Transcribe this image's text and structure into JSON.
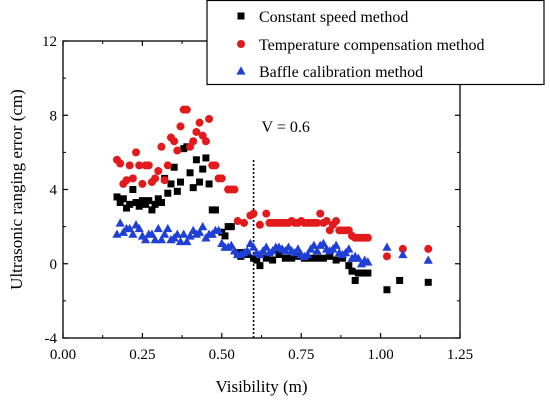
{
  "chart_data": {
    "type": "scatter",
    "xlabel": "Visibility (m)",
    "ylabel": "Ultrasonic ranging error (cm)",
    "xlim": [
      0.0,
      1.25
    ],
    "ylim": [
      -4,
      12
    ],
    "xticks": [
      "0.00",
      "0.25",
      "0.50",
      "0.75",
      "1.00",
      "1.25"
    ],
    "yticks": [
      "-4",
      "0",
      "4",
      "8",
      "12"
    ],
    "legend_position": "top-right",
    "annotation": {
      "text": "V = 0.6",
      "x": 0.6,
      "style": "dotted-vertical-line"
    },
    "series": [
      {
        "name": "Constant speed method",
        "marker": "square",
        "color": "#000000",
        "points": [
          [
            0.17,
            3.6
          ],
          [
            0.18,
            3.3
          ],
          [
            0.19,
            3.5
          ],
          [
            0.2,
            3.0
          ],
          [
            0.21,
            3.2
          ],
          [
            0.22,
            4.0
          ],
          [
            0.23,
            3.3
          ],
          [
            0.24,
            3.1
          ],
          [
            0.25,
            3.4
          ],
          [
            0.26,
            3.2
          ],
          [
            0.27,
            3.4
          ],
          [
            0.28,
            2.9
          ],
          [
            0.29,
            3.2
          ],
          [
            0.3,
            3.5
          ],
          [
            0.31,
            3.3
          ],
          [
            0.32,
            4.6
          ],
          [
            0.33,
            3.8
          ],
          [
            0.34,
            4.3
          ],
          [
            0.35,
            5.2
          ],
          [
            0.36,
            3.9
          ],
          [
            0.37,
            4.4
          ],
          [
            0.38,
            6.2
          ],
          [
            0.39,
            6.3
          ],
          [
            0.4,
            4.9
          ],
          [
            0.41,
            4.1
          ],
          [
            0.42,
            5.6
          ],
          [
            0.43,
            4.4
          ],
          [
            0.44,
            5.1
          ],
          [
            0.45,
            5.7
          ],
          [
            0.46,
            4.3
          ],
          [
            0.47,
            2.9
          ],
          [
            0.48,
            2.9
          ],
          [
            0.5,
            1.7
          ],
          [
            0.51,
            1.5
          ],
          [
            0.52,
            2.0
          ],
          [
            0.53,
            2.0
          ],
          [
            0.55,
            0.6
          ],
          [
            0.56,
            0.4
          ],
          [
            0.57,
            0.6
          ],
          [
            0.58,
            0.5
          ],
          [
            0.6,
            0.3
          ],
          [
            0.61,
            0.2
          ],
          [
            0.62,
            -0.1
          ],
          [
            0.64,
            0.3
          ],
          [
            0.66,
            0.2
          ],
          [
            0.68,
            0.5
          ],
          [
            0.7,
            0.3
          ],
          [
            0.72,
            0.3
          ],
          [
            0.74,
            0.4
          ],
          [
            0.76,
            0.3
          ],
          [
            0.78,
            0.3
          ],
          [
            0.8,
            0.3
          ],
          [
            0.82,
            0.3
          ],
          [
            0.84,
            0.4
          ],
          [
            0.86,
            0.2
          ],
          [
            0.88,
            0.3
          ],
          [
            0.9,
            -0.1
          ],
          [
            0.91,
            -0.4
          ],
          [
            0.92,
            -0.9
          ],
          [
            0.93,
            -0.5
          ],
          [
            0.94,
            -0.5
          ],
          [
            0.95,
            -0.5
          ],
          [
            0.96,
            -0.5
          ],
          [
            1.02,
            -1.4
          ],
          [
            1.06,
            -0.9
          ],
          [
            1.15,
            -1.0
          ]
        ]
      },
      {
        "name": "Temperature compensation method",
        "marker": "circle",
        "color": "#e31a1c",
        "points": [
          [
            0.17,
            5.6
          ],
          [
            0.18,
            5.4
          ],
          [
            0.19,
            4.3
          ],
          [
            0.2,
            4.5
          ],
          [
            0.21,
            5.3
          ],
          [
            0.22,
            4.6
          ],
          [
            0.23,
            6.0
          ],
          [
            0.24,
            5.3
          ],
          [
            0.25,
            4.3
          ],
          [
            0.26,
            5.3
          ],
          [
            0.27,
            5.3
          ],
          [
            0.28,
            4.4
          ],
          [
            0.29,
            4.6
          ],
          [
            0.3,
            5.0
          ],
          [
            0.31,
            6.3
          ],
          [
            0.32,
            4.5
          ],
          [
            0.33,
            5.3
          ],
          [
            0.34,
            6.8
          ],
          [
            0.35,
            6.6
          ],
          [
            0.36,
            6.1
          ],
          [
            0.37,
            7.4
          ],
          [
            0.38,
            8.3
          ],
          [
            0.39,
            8.3
          ],
          [
            0.4,
            6.3
          ],
          [
            0.41,
            6.6
          ],
          [
            0.42,
            7.1
          ],
          [
            0.43,
            7.6
          ],
          [
            0.44,
            6.9
          ],
          [
            0.45,
            6.6
          ],
          [
            0.46,
            7.8
          ],
          [
            0.47,
            5.3
          ],
          [
            0.48,
            5.3
          ],
          [
            0.49,
            4.6
          ],
          [
            0.5,
            4.6
          ],
          [
            0.52,
            4.0
          ],
          [
            0.53,
            4.0
          ],
          [
            0.54,
            4.0
          ],
          [
            0.55,
            2.3
          ],
          [
            0.57,
            2.2
          ],
          [
            0.59,
            2.6
          ],
          [
            0.6,
            2.7
          ],
          [
            0.62,
            2.1
          ],
          [
            0.64,
            2.7
          ],
          [
            0.65,
            2.2
          ],
          [
            0.66,
            2.2
          ],
          [
            0.67,
            2.2
          ],
          [
            0.68,
            2.2
          ],
          [
            0.69,
            2.2
          ],
          [
            0.7,
            2.2
          ],
          [
            0.71,
            2.2
          ],
          [
            0.72,
            2.3
          ],
          [
            0.73,
            2.2
          ],
          [
            0.74,
            2.2
          ],
          [
            0.75,
            2.3
          ],
          [
            0.76,
            2.2
          ],
          [
            0.77,
            2.2
          ],
          [
            0.78,
            2.2
          ],
          [
            0.79,
            2.2
          ],
          [
            0.8,
            2.2
          ],
          [
            0.81,
            2.7
          ],
          [
            0.82,
            2.2
          ],
          [
            0.83,
            2.3
          ],
          [
            0.84,
            1.8
          ],
          [
            0.85,
            2.1
          ],
          [
            0.86,
            2.3
          ],
          [
            0.87,
            1.8
          ],
          [
            0.88,
            1.8
          ],
          [
            0.89,
            1.8
          ],
          [
            0.9,
            1.8
          ],
          [
            0.91,
            1.5
          ],
          [
            0.92,
            1.4
          ],
          [
            0.93,
            1.4
          ],
          [
            0.94,
            1.4
          ],
          [
            0.95,
            1.4
          ],
          [
            0.96,
            1.4
          ],
          [
            1.02,
            0.4
          ],
          [
            1.07,
            0.8
          ],
          [
            1.15,
            0.8
          ]
        ]
      },
      {
        "name": "Baffle calibration method",
        "marker": "triangle",
        "color": "#1f3fd6",
        "points": [
          [
            0.17,
            1.6
          ],
          [
            0.18,
            2.2
          ],
          [
            0.19,
            1.7
          ],
          [
            0.2,
            1.9
          ],
          [
            0.21,
            1.9
          ],
          [
            0.22,
            1.6
          ],
          [
            0.23,
            2.1
          ],
          [
            0.24,
            1.9
          ],
          [
            0.25,
            1.5
          ],
          [
            0.26,
            1.3
          ],
          [
            0.27,
            1.6
          ],
          [
            0.28,
            1.6
          ],
          [
            0.29,
            1.3
          ],
          [
            0.3,
            1.9
          ],
          [
            0.31,
            1.3
          ],
          [
            0.32,
            1.6
          ],
          [
            0.33,
            1.9
          ],
          [
            0.34,
            1.3
          ],
          [
            0.35,
            1.4
          ],
          [
            0.36,
            1.6
          ],
          [
            0.37,
            1.2
          ],
          [
            0.38,
            1.6
          ],
          [
            0.39,
            1.2
          ],
          [
            0.4,
            1.5
          ],
          [
            0.41,
            1.8
          ],
          [
            0.42,
            1.6
          ],
          [
            0.43,
            1.7
          ],
          [
            0.44,
            2.0
          ],
          [
            0.45,
            1.4
          ],
          [
            0.46,
            1.6
          ],
          [
            0.47,
            1.6
          ],
          [
            0.48,
            1.8
          ],
          [
            0.49,
            1.8
          ],
          [
            0.5,
            1.1
          ],
          [
            0.51,
            0.9
          ],
          [
            0.52,
            0.9
          ],
          [
            0.53,
            1.0
          ],
          [
            0.54,
            0.7
          ],
          [
            0.55,
            0.5
          ],
          [
            0.56,
            0.5
          ],
          [
            0.57,
            0.6
          ],
          [
            0.58,
            0.7
          ],
          [
            0.59,
            1.1
          ],
          [
            0.6,
            0.9
          ],
          [
            0.61,
            0.6
          ],
          [
            0.62,
            0.5
          ],
          [
            0.63,
            0.7
          ],
          [
            0.64,
            0.9
          ],
          [
            0.65,
            0.6
          ],
          [
            0.66,
            0.7
          ],
          [
            0.67,
            0.9
          ],
          [
            0.68,
            0.9
          ],
          [
            0.69,
            0.8
          ],
          [
            0.7,
            0.7
          ],
          [
            0.71,
            0.9
          ],
          [
            0.72,
            0.7
          ],
          [
            0.73,
            0.6
          ],
          [
            0.74,
            0.8
          ],
          [
            0.75,
            0.5
          ],
          [
            0.76,
            0.4
          ],
          [
            0.77,
            0.5
          ],
          [
            0.78,
            0.8
          ],
          [
            0.79,
            1.0
          ],
          [
            0.8,
            0.7
          ],
          [
            0.81,
            1.0
          ],
          [
            0.82,
            1.1
          ],
          [
            0.83,
            0.8
          ],
          [
            0.84,
            0.7
          ],
          [
            0.85,
            0.8
          ],
          [
            0.86,
            1.0
          ],
          [
            0.87,
            0.6
          ],
          [
            0.88,
            0.5
          ],
          [
            0.89,
            0.6
          ],
          [
            0.9,
            0.8
          ],
          [
            0.91,
            0.3
          ],
          [
            0.92,
            0.4
          ],
          [
            0.93,
            0.3
          ],
          [
            0.94,
            0.0
          ],
          [
            0.95,
            0.2
          ],
          [
            0.96,
            0.1
          ],
          [
            1.02,
            0.9
          ],
          [
            1.07,
            0.5
          ],
          [
            1.15,
            0.2
          ]
        ]
      }
    ]
  }
}
